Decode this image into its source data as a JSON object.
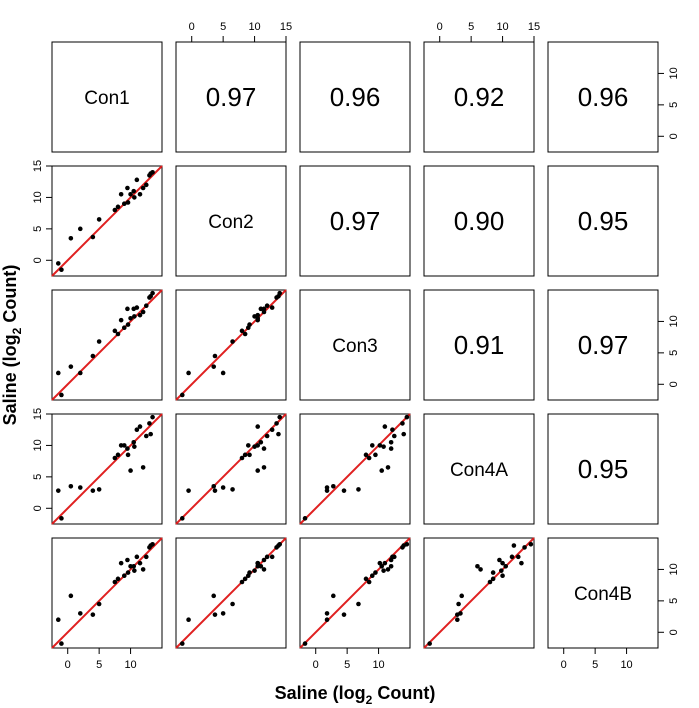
{
  "chart_data": {
    "type": "scatter_matrix",
    "variables": [
      "Con1",
      "Con2",
      "Con3",
      "Con4A",
      "Con4B"
    ],
    "series": [
      {
        "name": "Con1",
        "values": [
          -1.5,
          -1,
          0.5,
          2,
          4,
          5,
          7.5,
          8,
          8.5,
          9,
          9.5,
          10,
          10.5,
          11,
          11.5,
          12,
          12.5,
          13,
          13.5,
          13.2,
          9.6,
          10.6
        ]
      },
      {
        "name": "Con2",
        "values": [
          -0.5,
          -1.5,
          3.5,
          5,
          3.7,
          6.5,
          8,
          8.5,
          10.5,
          9,
          11.5,
          10.5,
          11,
          12.8,
          10.5,
          11.5,
          12,
          13.5,
          14,
          13.8,
          9.2,
          10
        ]
      },
      {
        "name": "Con3",
        "values": [
          1.8,
          -1.7,
          2.8,
          1.8,
          4.5,
          6.8,
          8.5,
          8,
          10.2,
          9,
          12,
          10.5,
          12,
          12.2,
          11,
          11.5,
          12.5,
          13.8,
          14.5,
          14,
          9.5,
          10.8
        ]
      },
      {
        "name": "Con4A",
        "values": [
          2.8,
          -1.6,
          3.5,
          3.3,
          2.8,
          3,
          8,
          8.5,
          10,
          10,
          9.5,
          6,
          10.5,
          12.5,
          13,
          6.5,
          11.5,
          13.5,
          14.5,
          11.8,
          8.5,
          9.8
        ]
      },
      {
        "name": "Con4B",
        "values": [
          2,
          -1.8,
          5.8,
          3,
          2.8,
          4.5,
          8,
          8.5,
          11,
          9,
          11.5,
          10.5,
          10.5,
          12,
          11,
          10,
          12,
          13.5,
          14,
          13.8,
          9.5,
          9.8
        ]
      }
    ],
    "correlations": {
      "values": [
        0.97,
        0.96,
        0.92,
        0.96,
        0.97,
        0.9,
        0.95,
        0.91,
        0.97,
        0.95
      ],
      "value_labels": [
        "0.97",
        "0.96",
        "0.92",
        "0.96",
        "0.97",
        "0.90",
        "0.95",
        "0.91",
        "0.97",
        "0.95"
      ]
    },
    "xlim": [
      -2.5,
      15
    ],
    "ylim": [
      -2.5,
      15
    ],
    "xticks_top": [
      0,
      5,
      10,
      15
    ],
    "xticks_bottom": [
      0,
      5,
      10
    ],
    "yticks_left": [
      0,
      5,
      10,
      15
    ],
    "yticks_right": [
      0,
      5,
      10
    ],
    "point_color": "#000000",
    "line_color": "#e02020",
    "xlabel": {
      "text": "Saline (log",
      "sub": "2",
      "rest": " Count)"
    },
    "ylabel": {
      "text": "Saline (log",
      "sub": "2",
      "rest": " Count)"
    }
  }
}
